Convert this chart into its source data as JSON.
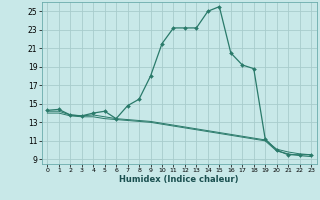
{
  "xlabel": "Humidex (Indice chaleur)",
  "background_color": "#c8e8e8",
  "grid_color": "#a8cccc",
  "line_color": "#2a7a6a",
  "xlim": [
    -0.5,
    23.5
  ],
  "ylim": [
    8.5,
    26.0
  ],
  "xticks": [
    0,
    1,
    2,
    3,
    4,
    5,
    6,
    7,
    8,
    9,
    10,
    11,
    12,
    13,
    14,
    15,
    16,
    17,
    18,
    19,
    20,
    21,
    22,
    23
  ],
  "yticks": [
    9,
    11,
    13,
    15,
    17,
    19,
    21,
    23,
    25
  ],
  "main_curve_x": [
    0,
    1,
    2,
    3,
    4,
    5,
    6,
    7,
    8,
    9,
    10,
    11,
    12,
    13,
    14,
    15,
    16,
    17,
    18,
    19,
    20,
    21,
    22,
    23
  ],
  "main_curve_y": [
    14.3,
    14.4,
    13.8,
    13.7,
    14.0,
    14.2,
    13.4,
    14.8,
    15.5,
    18.0,
    21.5,
    23.2,
    23.2,
    23.2,
    25.0,
    25.5,
    20.5,
    19.2,
    18.8,
    11.2,
    10.0,
    9.5,
    9.5,
    9.5
  ],
  "line2_x": [
    0,
    1,
    2,
    3,
    4,
    5,
    6,
    7,
    8,
    9,
    10,
    11,
    12,
    13,
    14,
    15,
    16,
    17,
    18,
    19,
    20,
    21,
    22,
    23
  ],
  "line2_y": [
    14.2,
    14.2,
    13.8,
    13.7,
    13.8,
    13.6,
    13.4,
    13.3,
    13.2,
    13.1,
    12.9,
    12.7,
    12.5,
    12.3,
    12.1,
    11.9,
    11.7,
    11.5,
    11.3,
    11.1,
    10.1,
    9.8,
    9.6,
    9.5
  ],
  "line3_x": [
    0,
    1,
    2,
    3,
    4,
    5,
    6,
    7,
    8,
    9,
    10,
    11,
    12,
    13,
    14,
    15,
    16,
    17,
    18,
    19,
    20,
    21,
    22,
    23
  ],
  "line3_y": [
    14.0,
    14.0,
    13.7,
    13.6,
    13.6,
    13.4,
    13.3,
    13.2,
    13.1,
    13.0,
    12.8,
    12.6,
    12.4,
    12.2,
    12.0,
    11.8,
    11.6,
    11.4,
    11.2,
    11.0,
    9.9,
    9.6,
    9.4,
    9.3
  ]
}
